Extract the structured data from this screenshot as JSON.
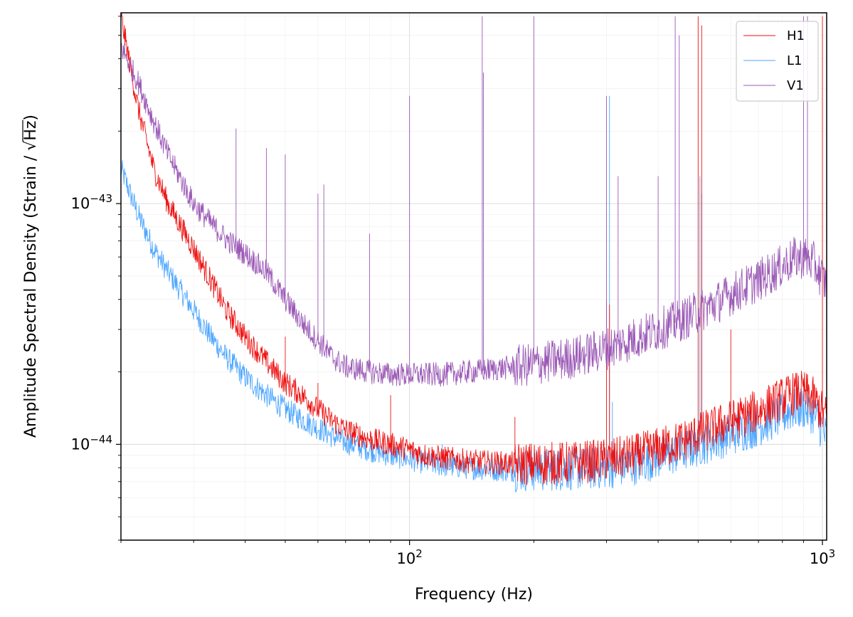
{
  "chart_data": {
    "type": "line",
    "xscale": "log",
    "yscale": "log",
    "xlim": [
      20,
      1024
    ],
    "ylim": [
      4e-45,
      6.2e-43
    ],
    "xlabel": "Frequency (Hz)",
    "ylabel_prefix": "Amplitude Spectral Density (Strain / ",
    "ylabel_radicand": "Hz",
    "ylabel_suffix": ")",
    "xticks": [
      {
        "base": "10",
        "exp": "2",
        "value": 100
      },
      {
        "base": "10",
        "exp": "3",
        "value": 1000
      }
    ],
    "yticks": [
      {
        "base": "10",
        "exp": "−44",
        "value": 1e-44
      },
      {
        "base": "10",
        "exp": "−43",
        "value": 1e-43
      }
    ],
    "grid": true,
    "legend_position": "top-right",
    "series": [
      {
        "name": "H1",
        "color": "#ee1111",
        "x": [
          20,
          22,
          24,
          26,
          28,
          30,
          33,
          36,
          40,
          45,
          50,
          55,
          60,
          65,
          70,
          80,
          90,
          100,
          110,
          120,
          140,
          160,
          180,
          200,
          250,
          300,
          350,
          400,
          450,
          500,
          550,
          600,
          700,
          800,
          850,
          900,
          950,
          1000,
          1024
        ],
        "y": [
          6e-43,
          2.5e-43,
          1.4e-43,
          1e-43,
          8e-44,
          6.5e-44,
          4.8e-44,
          3.6e-44,
          2.8e-44,
          2.2e-44,
          1.8e-44,
          1.6e-44,
          1.4e-44,
          1.25e-44,
          1.15e-44,
          1.05e-44,
          1e-44,
          9.5e-45,
          9e-45,
          8.8e-45,
          8.5e-45,
          8.4e-45,
          8.3e-45,
          8.3e-45,
          8.4e-45,
          8.6e-45,
          9e-45,
          9.6e-45,
          1.02e-44,
          1.1e-44,
          1.18e-44,
          1.25e-44,
          1.38e-44,
          1.55e-44,
          1.62e-44,
          1.65e-44,
          1.55e-44,
          1.35e-44,
          1.3e-44
        ],
        "lines": [
          [
            50,
            2.8e-44
          ],
          [
            60,
            1.8e-44
          ],
          [
            90,
            1.6e-44
          ],
          [
            180,
            1.3e-44
          ],
          [
            300,
            4e-44
          ],
          [
            305,
            3.8e-44
          ],
          [
            500,
            6e-43
          ],
          [
            510,
            5.5e-43
          ],
          [
            600,
            3e-44
          ],
          [
            1000,
            6e-43
          ]
        ]
      },
      {
        "name": "L1",
        "color": "#4da6ff",
        "x": [
          20,
          22,
          24,
          26,
          28,
          30,
          33,
          36,
          40,
          45,
          50,
          55,
          60,
          65,
          70,
          80,
          90,
          100,
          110,
          120,
          140,
          160,
          180,
          200,
          250,
          300,
          350,
          400,
          450,
          500,
          550,
          600,
          700,
          800,
          850,
          900,
          950,
          1000,
          1024
        ],
        "y": [
          1.4e-43,
          9e-44,
          6.5e-44,
          5.2e-44,
          4.3e-44,
          3.6e-44,
          2.8e-44,
          2.3e-44,
          1.9e-44,
          1.6e-44,
          1.4e-44,
          1.27e-44,
          1.17e-44,
          1.08e-44,
          1.02e-44,
          9.5e-45,
          9e-45,
          8.7e-45,
          8.4e-45,
          8.2e-45,
          8e-45,
          7.9e-45,
          7.8e-45,
          7.8e-45,
          7.9e-45,
          8e-45,
          8.3e-45,
          8.8e-45,
          9.3e-45,
          9.9e-45,
          1.05e-44,
          1.1e-44,
          1.2e-44,
          1.33e-44,
          1.4e-44,
          1.42e-44,
          1.35e-44,
          1.15e-44,
          1.05e-44
        ],
        "lines": [
          [
            120,
            1e-44
          ],
          [
            305,
            2.8e-43
          ],
          [
            310,
            1.5e-44
          ],
          [
            505,
            1.3e-43
          ],
          [
            510,
            1.1e-43
          ],
          [
            1024,
            2.5e-44
          ]
        ]
      },
      {
        "name": "V1",
        "color": "#9b59b6",
        "x": [
          20,
          22,
          24,
          26,
          28,
          30,
          33,
          36,
          40,
          45,
          50,
          55,
          60,
          65,
          70,
          80,
          90,
          100,
          110,
          120,
          140,
          160,
          180,
          200,
          250,
          300,
          350,
          400,
          450,
          500,
          550,
          600,
          700,
          800,
          850,
          900,
          950,
          1000,
          1024
        ],
        "y": [
          4.5e-43,
          3.2e-43,
          2.2e-43,
          1.6e-43,
          1.25e-43,
          1e-43,
          8.3e-44,
          7.1e-44,
          6.2e-44,
          5.2e-44,
          4e-44,
          3.2e-44,
          2.7e-44,
          2.3e-44,
          2.1e-44,
          2e-44,
          1.95e-44,
          1.95e-44,
          1.95e-44,
          1.95e-44,
          2e-44,
          2.05e-44,
          2.1e-44,
          2.15e-44,
          2.3e-44,
          2.5e-44,
          2.75e-44,
          3e-44,
          3.25e-44,
          3.55e-44,
          3.85e-44,
          4.2e-44,
          4.8e-44,
          5.5e-44,
          5.9e-44,
          6e-44,
          5.7e-44,
          4.9e-44,
          4.6e-44
        ],
        "lines": [
          [
            38,
            2.05e-43
          ],
          [
            45,
            1.7e-43
          ],
          [
            50,
            1.6e-43
          ],
          [
            60,
            1.1e-43
          ],
          [
            62,
            1.2e-43
          ],
          [
            80,
            7.5e-44
          ],
          [
            100,
            2.8e-43
          ],
          [
            150,
            6e-43
          ],
          [
            151,
            3.5e-43
          ],
          [
            200,
            6e-43
          ],
          [
            300,
            2.8e-43
          ],
          [
            320,
            1.3e-43
          ],
          [
            400,
            1.3e-43
          ],
          [
            440,
            6e-43
          ],
          [
            450,
            5e-43
          ],
          [
            900,
            6e-43
          ],
          [
            920,
            6e-43
          ]
        ]
      }
    ]
  }
}
